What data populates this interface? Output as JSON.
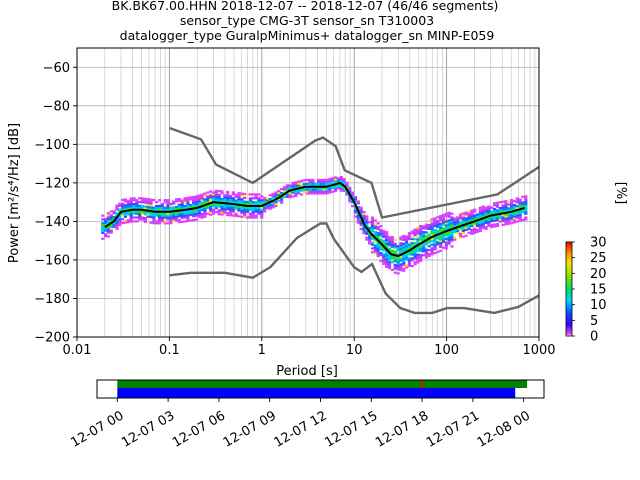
{
  "header": {
    "line1": "BK.BK67.00.HHN   2018-12-07 -- 2018-12-07  (46/46 segments)",
    "line2": "sensor_type CMG-3T sensor_sn T310003",
    "line3": "datalogger_type GuralpMinimus+ datalogger_sn MINP-E059"
  },
  "colorbar": {
    "label": "[%]",
    "ticks": [
      "0",
      "5",
      "10",
      "15",
      "20",
      "25",
      "30"
    ],
    "range": [
      0,
      30
    ]
  },
  "timeline": {
    "tick_labels": [
      "12-07 00",
      "12-07 03",
      "12-07 06",
      "12-07 09",
      "12-07 12",
      "12-07 15",
      "12-07 18",
      "12-07 21",
      "12-08 00"
    ],
    "tick_hours": [
      0,
      3,
      6,
      9,
      12,
      15,
      18,
      21,
      24
    ],
    "xlim_hours": [
      -1.2,
      25.2
    ],
    "green_bar_hours": [
      0,
      24.2
    ],
    "blue_bar_hours": [
      0,
      23.5
    ],
    "red_marker_hour": 18.0,
    "colors": {
      "green": "#008000",
      "blue": "#0000ff",
      "red": "#ff0000"
    }
  },
  "chart_data": {
    "type": "heatmap",
    "title": "BK.BK67.00.HHN   2018-12-07 -- 2018-12-07  (46/46 segments)",
    "xlabel": "Period [s]",
    "ylabel": "Power [m²/s⁴/Hz] [dB]",
    "x_scale": "log",
    "xlim": [
      0.01,
      1000
    ],
    "ylim": [
      -200,
      -50
    ],
    "x_ticks": [
      0.01,
      0.1,
      1,
      10,
      100,
      1000
    ],
    "x_tick_labels": [
      "0.01",
      "0.1",
      "1",
      "10",
      "100",
      "1000"
    ],
    "y_ticks": [
      -200,
      -180,
      -160,
      -140,
      -120,
      -100,
      -80,
      -60
    ],
    "y_tick_labels": [
      "−200",
      "−180",
      "−160",
      "−140",
      "−120",
      "−100",
      "−80",
      "−60"
    ],
    "grid": true,
    "noise_models": {
      "color": "#666666",
      "high": [
        [
          0.1,
          -91.5
        ],
        [
          0.22,
          -97.4
        ],
        [
          0.32,
          -110.5
        ],
        [
          0.8,
          -120
        ],
        [
          3.8,
          -98
        ],
        [
          4.6,
          -96.5
        ],
        [
          6.3,
          -101
        ],
        [
          7.9,
          -113.5
        ],
        [
          15.4,
          -120
        ],
        [
          20,
          -138
        ],
        [
          354.8,
          -126
        ],
        [
          10000,
          -80
        ]
      ],
      "low": [
        [
          0.1,
          -168
        ],
        [
          0.17,
          -166.7
        ],
        [
          0.4,
          -166.7
        ],
        [
          0.8,
          -169.2
        ],
        [
          1.24,
          -163.7
        ],
        [
          2.4,
          -148.6
        ],
        [
          4.3,
          -141.1
        ],
        [
          5,
          -141.1
        ],
        [
          6,
          -149
        ],
        [
          10,
          -163.8
        ],
        [
          12,
          -166.2
        ],
        [
          15.6,
          -162.1
        ],
        [
          21.9,
          -177.5
        ],
        [
          31.6,
          -185
        ],
        [
          45,
          -187.5
        ],
        [
          70,
          -187.5
        ],
        [
          101,
          -185
        ],
        [
          154,
          -185
        ],
        [
          328,
          -187.5
        ],
        [
          600,
          -184.4
        ],
        [
          10000,
          -151.5
        ]
      ]
    },
    "mean_curve": {
      "color": "#000000",
      "x": [
        0.02,
        0.025,
        0.03,
        0.04,
        0.05,
        0.07,
        0.1,
        0.15,
        0.2,
        0.3,
        0.5,
        0.7,
        1,
        1.5,
        2,
        3,
        4,
        5,
        6,
        7,
        8,
        10,
        13,
        15,
        20,
        25,
        30,
        40,
        50,
        70,
        100,
        150,
        200,
        300,
        500,
        700
      ],
      "y": [
        -143,
        -140,
        -135,
        -134,
        -134,
        -135,
        -135,
        -134,
        -133,
        -130,
        -131,
        -132,
        -132,
        -128,
        -124,
        -122,
        -122,
        -122,
        -121,
        -120,
        -122,
        -130,
        -142,
        -146,
        -152,
        -157,
        -158,
        -155,
        -152,
        -148,
        -145,
        -142,
        -140,
        -137,
        -135,
        -133
      ]
    },
    "spread_curves": [
      {
        "name": "magenta-upper",
        "color": "#e040ff",
        "dy": 7
      },
      {
        "name": "magenta-lower",
        "color": "#e040ff",
        "dy": -7
      },
      {
        "name": "blue-upper",
        "color": "#3b4cff",
        "dy": 3
      },
      {
        "name": "green-lower",
        "color": "#00d0a0",
        "dy": -3
      },
      {
        "name": "cyan-lower",
        "color": "#00c8ff",
        "dy": -5
      }
    ]
  }
}
